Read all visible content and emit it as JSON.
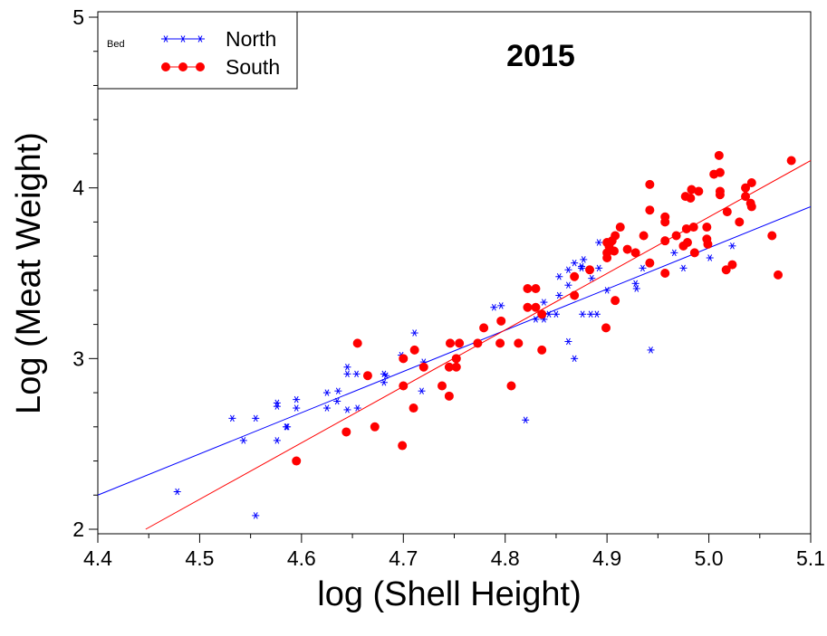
{
  "chart_data": {
    "type": "scatter",
    "title": "2015",
    "xlabel": "log (Shell Height)",
    "ylabel": "Log (Meat Weight)",
    "xlim": [
      4.4,
      5.1
    ],
    "ylim": [
      2,
      5
    ],
    "x_ticks": [
      "4.4",
      "4.5",
      "4.6",
      "4.7",
      "4.8",
      "4.9",
      "5.0",
      "5.1"
    ],
    "y_ticks": [
      "2",
      "3",
      "4",
      "5"
    ],
    "grid": false,
    "legend": {
      "title": "Bed",
      "position": "top-left"
    },
    "series": [
      {
        "name": "North",
        "color": "#0000ff",
        "marker": "asterisk",
        "fit": {
          "x": [
            4.4,
            5.1
          ],
          "y": [
            2.2,
            3.89
          ]
        },
        "points": [
          [
            4.478,
            2.22
          ],
          [
            4.532,
            2.65
          ],
          [
            4.543,
            2.52
          ],
          [
            4.555,
            2.65
          ],
          [
            4.555,
            2.08
          ],
          [
            4.576,
            2.52
          ],
          [
            4.576,
            2.72
          ],
          [
            4.576,
            2.74
          ],
          [
            4.585,
            2.6
          ],
          [
            4.586,
            2.6
          ],
          [
            4.595,
            2.71
          ],
          [
            4.595,
            2.76
          ],
          [
            4.625,
            2.71
          ],
          [
            4.625,
            2.8
          ],
          [
            4.635,
            2.75
          ],
          [
            4.636,
            2.81
          ],
          [
            4.645,
            2.95
          ],
          [
            4.645,
            2.91
          ],
          [
            4.645,
            2.7
          ],
          [
            4.654,
            2.91
          ],
          [
            4.655,
            2.71
          ],
          [
            4.681,
            2.91
          ],
          [
            4.681,
            2.86
          ],
          [
            4.683,
            2.9
          ],
          [
            4.698,
            3.02
          ],
          [
            4.711,
            3.15
          ],
          [
            4.718,
            2.81
          ],
          [
            4.72,
            2.98
          ],
          [
            4.789,
            3.3
          ],
          [
            4.796,
            3.31
          ],
          [
            4.82,
            2.64
          ],
          [
            4.83,
            3.23
          ],
          [
            4.838,
            3.23
          ],
          [
            4.838,
            3.33
          ],
          [
            4.843,
            3.26
          ],
          [
            4.85,
            3.26
          ],
          [
            4.853,
            3.37
          ],
          [
            4.853,
            3.48
          ],
          [
            4.862,
            3.43
          ],
          [
            4.862,
            3.1
          ],
          [
            4.862,
            3.52
          ],
          [
            4.868,
            3.0
          ],
          [
            4.868,
            3.56
          ],
          [
            4.875,
            3.53
          ],
          [
            4.875,
            3.54
          ],
          [
            4.876,
            3.26
          ],
          [
            4.877,
            3.58
          ],
          [
            4.884,
            3.26
          ],
          [
            4.885,
            3.47
          ],
          [
            4.89,
            3.26
          ],
          [
            4.892,
            3.53
          ],
          [
            4.892,
            3.68
          ],
          [
            4.9,
            3.4
          ],
          [
            4.928,
            3.44
          ],
          [
            4.929,
            3.41
          ],
          [
            4.935,
            3.53
          ],
          [
            4.943,
            3.05
          ],
          [
            4.966,
            3.62
          ],
          [
            4.975,
            3.53
          ],
          [
            5.001,
            3.59
          ],
          [
            5.023,
            3.66
          ]
        ]
      },
      {
        "name": "South",
        "color": "#ff0000",
        "marker": "circle",
        "fit": {
          "x": [
            4.447,
            5.1
          ],
          "y": [
            2.0,
            4.16
          ]
        },
        "points": [
          [
            4.595,
            2.4
          ],
          [
            4.644,
            2.57
          ],
          [
            4.655,
            3.09
          ],
          [
            4.665,
            2.9
          ],
          [
            4.672,
            2.6
          ],
          [
            4.699,
            2.49
          ],
          [
            4.7,
            2.84
          ],
          [
            4.7,
            3.0
          ],
          [
            4.71,
            2.71
          ],
          [
            4.711,
            3.05
          ],
          [
            4.72,
            2.95
          ],
          [
            4.738,
            2.84
          ],
          [
            4.745,
            2.78
          ],
          [
            4.745,
            2.95
          ],
          [
            4.746,
            3.09
          ],
          [
            4.752,
            2.95
          ],
          [
            4.752,
            3.0
          ],
          [
            4.755,
            3.09
          ],
          [
            4.773,
            3.09
          ],
          [
            4.779,
            3.18
          ],
          [
            4.795,
            3.09
          ],
          [
            4.796,
            3.22
          ],
          [
            4.806,
            2.84
          ],
          [
            4.813,
            3.09
          ],
          [
            4.822,
            3.3
          ],
          [
            4.822,
            3.41
          ],
          [
            4.83,
            3.41
          ],
          [
            4.83,
            3.3
          ],
          [
            4.836,
            3.05
          ],
          [
            4.836,
            3.26
          ],
          [
            4.868,
            3.37
          ],
          [
            4.868,
            3.48
          ],
          [
            4.883,
            3.52
          ],
          [
            4.899,
            3.18
          ],
          [
            4.9,
            3.59
          ],
          [
            4.9,
            3.62
          ],
          [
            4.9,
            3.68
          ],
          [
            4.902,
            3.66
          ],
          [
            4.905,
            3.69
          ],
          [
            4.907,
            3.63
          ],
          [
            4.908,
            3.72
          ],
          [
            4.908,
            3.34
          ],
          [
            4.913,
            3.77
          ],
          [
            4.92,
            3.64
          ],
          [
            4.928,
            3.62
          ],
          [
            4.936,
            3.72
          ],
          [
            4.942,
            3.87
          ],
          [
            4.942,
            3.56
          ],
          [
            4.942,
            4.02
          ],
          [
            4.957,
            3.8
          ],
          [
            4.957,
            3.83
          ],
          [
            4.957,
            3.69
          ],
          [
            4.957,
            3.5
          ],
          [
            4.968,
            3.72
          ],
          [
            4.975,
            3.66
          ],
          [
            4.977,
            3.95
          ],
          [
            4.978,
            3.76
          ],
          [
            4.979,
            3.68
          ],
          [
            4.982,
            3.94
          ],
          [
            4.983,
            3.99
          ],
          [
            4.985,
            3.77
          ],
          [
            4.986,
            3.62
          ],
          [
            4.99,
            3.98
          ],
          [
            4.998,
            3.77
          ],
          [
            4.998,
            3.7
          ],
          [
            4.999,
            3.67
          ],
          [
            5.005,
            4.08
          ],
          [
            5.01,
            4.19
          ],
          [
            5.011,
            3.96
          ],
          [
            5.011,
            3.98
          ],
          [
            5.011,
            4.09
          ],
          [
            5.017,
            3.52
          ],
          [
            5.018,
            3.86
          ],
          [
            5.023,
            3.55
          ],
          [
            5.03,
            3.8
          ],
          [
            5.036,
            4.0
          ],
          [
            5.036,
            3.95
          ],
          [
            5.041,
            3.91
          ],
          [
            5.042,
            3.89
          ],
          [
            5.042,
            4.03
          ],
          [
            5.062,
            3.72
          ],
          [
            5.068,
            3.49
          ],
          [
            5.081,
            4.16
          ]
        ]
      }
    ]
  }
}
